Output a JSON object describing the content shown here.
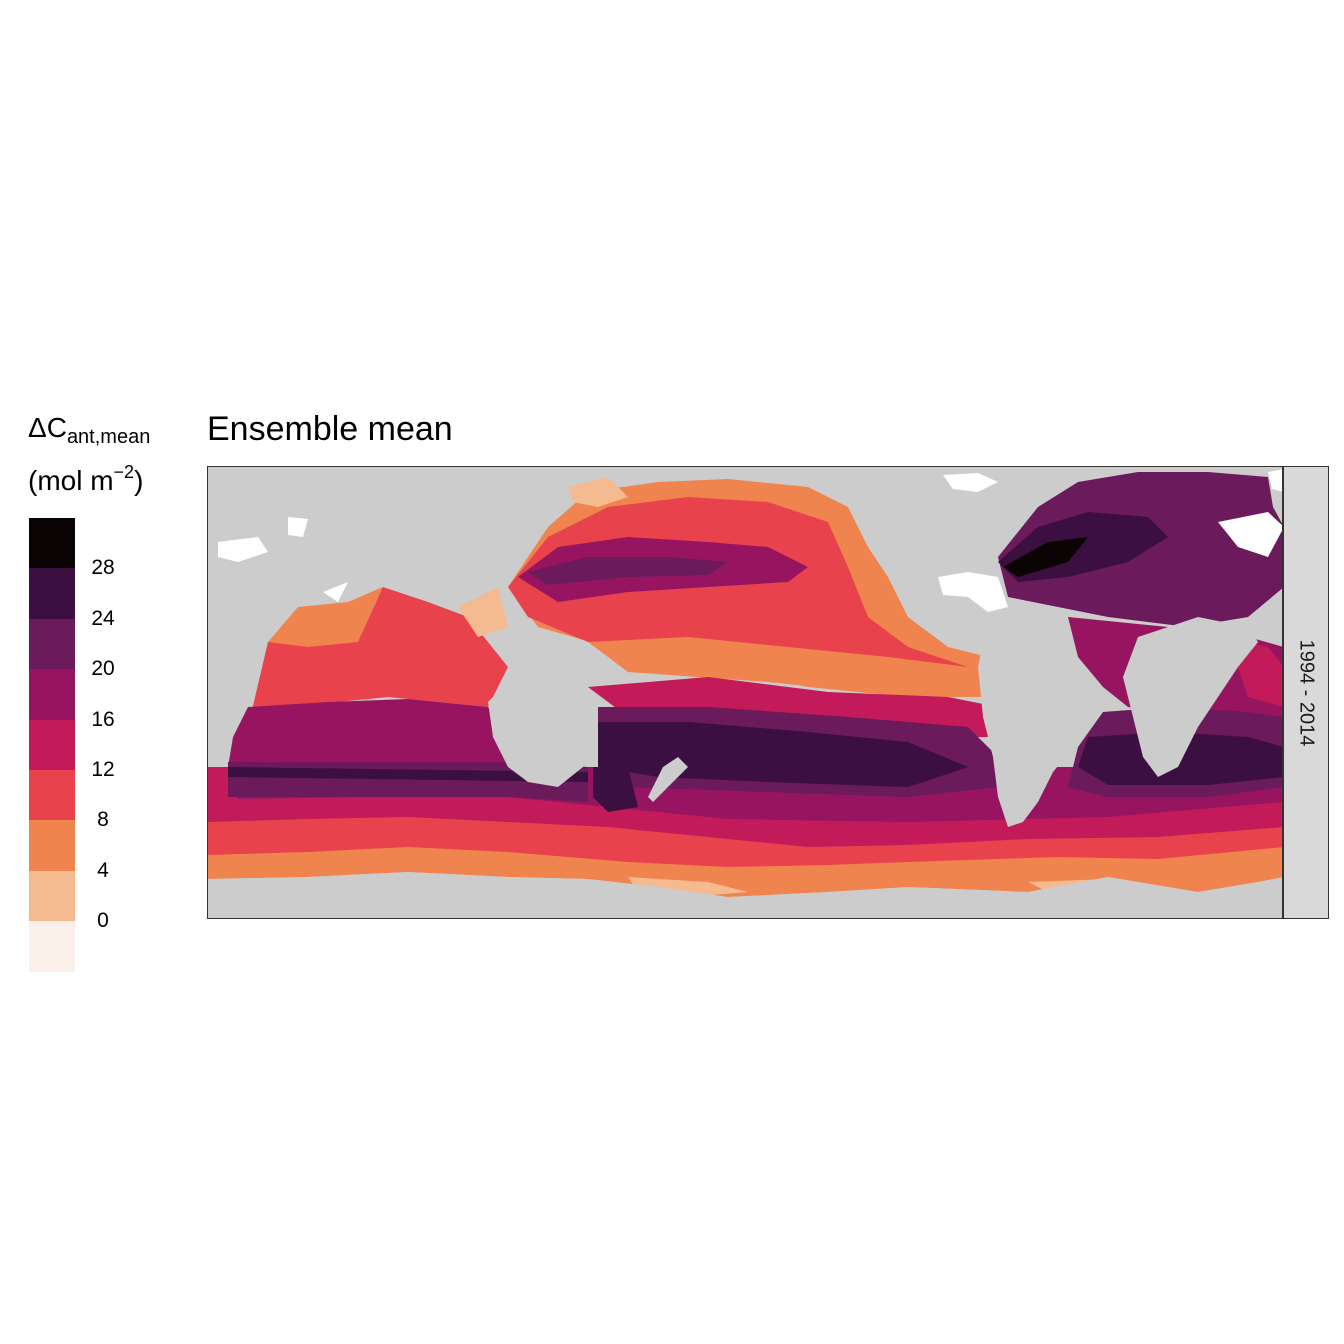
{
  "legend": {
    "title_main": "ΔC",
    "title_sub": "ant,mean",
    "unit_open": "(mol m",
    "unit_exp": "−2",
    "unit_close": ")",
    "bins": [
      {
        "color": "#0b0405"
      },
      {
        "color": "#3b0f3f"
      },
      {
        "color": "#6b1a5b"
      },
      {
        "color": "#971560"
      },
      {
        "color": "#c31a5a"
      },
      {
        "color": "#e8434d"
      },
      {
        "color": "#f0844f"
      },
      {
        "color": "#f4bb90"
      },
      {
        "color": "#fbf1ea"
      }
    ],
    "ticks": [
      "28",
      "24",
      "20",
      "16",
      "12",
      "8",
      "4",
      "0"
    ]
  },
  "map": {
    "title": "Ensemble mean",
    "facet_label": "1994 - 2014",
    "land_color": "#cccccc",
    "ice_color": "#ffffff"
  }
}
